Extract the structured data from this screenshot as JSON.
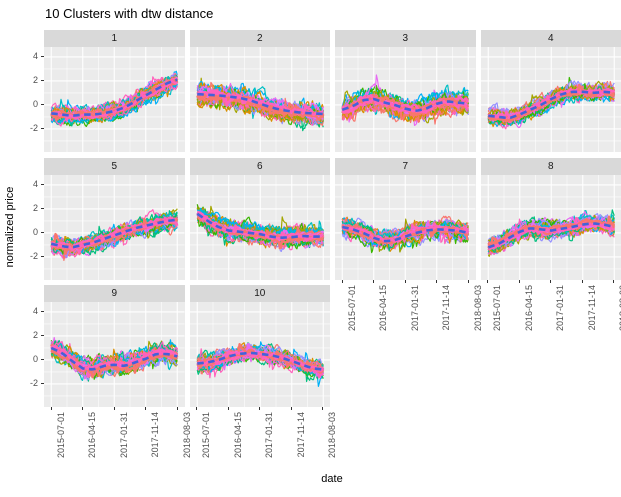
{
  "title": "10 Clusters with dtw distance",
  "axes": {
    "xlabel": "date",
    "ylabel": "normalized price"
  },
  "chart_data": {
    "type": "line",
    "description": "Faceted spaghetti plot of clustered time series (4x3 facet wrap, 10 facets). Each facet shows many normalized price series colored by a 10-hue palette plus a thick dashed blue centroid line.",
    "facet_labels": [
      "1",
      "2",
      "3",
      "4",
      "5",
      "6",
      "7",
      "8",
      "9",
      "10"
    ],
    "x_tick_labels": [
      "2015-07-01",
      "2016-04-15",
      "2017-01-31",
      "2017-11-14",
      "2018-08-03"
    ],
    "y_tick_values": [
      4,
      2,
      0,
      -2
    ],
    "y_domain": [
      -3.92,
      4.83
    ],
    "x_range": [
      "2015-07-01",
      "2018-08-03"
    ],
    "grid": "major and minor white gridlines on gray panel",
    "legend": "none",
    "facets": [
      {
        "label": "1",
        "centroid_trend": [
          -0.7,
          -0.8,
          -0.9,
          -0.8,
          -0.8,
          -0.7,
          -0.5,
          -0.2,
          0.3,
          0.8,
          1.3,
          1.8,
          2.1
        ],
        "spread": 0.85
      },
      {
        "label": "2",
        "centroid_trend": [
          0.9,
          0.85,
          0.8,
          0.7,
          0.6,
          0.4,
          0.1,
          -0.2,
          -0.4,
          -0.55,
          -0.65,
          -0.7,
          -0.75
        ],
        "spread": 1.15
      },
      {
        "label": "3",
        "centroid_trend": [
          -0.4,
          -0.1,
          0.4,
          0.5,
          0.2,
          0.0,
          -0.3,
          -0.5,
          -0.3,
          0.1,
          0.3,
          0.2,
          0.1
        ],
        "spread": 1.2
      },
      {
        "label": "4",
        "centroid_trend": [
          -0.9,
          -1.0,
          -1.1,
          -0.8,
          -0.4,
          0.0,
          0.5,
          0.9,
          1.1,
          1.1,
          1.0,
          1.1,
          1.0
        ],
        "spread": 0.9
      },
      {
        "label": "5",
        "centroid_trend": [
          -0.9,
          -1.1,
          -1.2,
          -1.0,
          -0.8,
          -0.5,
          -0.2,
          0.1,
          0.4,
          0.6,
          0.8,
          1.0,
          1.1
        ],
        "spread": 0.9
      },
      {
        "label": "6",
        "centroid_trend": [
          1.6,
          1.0,
          0.5,
          0.2,
          0.1,
          0.0,
          -0.1,
          -0.3,
          -0.4,
          -0.35,
          -0.25,
          -0.3,
          -0.3
        ],
        "spread": 1.0
      },
      {
        "label": "7",
        "centroid_trend": [
          0.5,
          0.3,
          0.0,
          -0.4,
          -0.7,
          -0.6,
          -0.3,
          0.0,
          0.2,
          0.3,
          0.25,
          0.2,
          0.0
        ],
        "spread": 1.0
      },
      {
        "label": "8",
        "centroid_trend": [
          -1.2,
          -0.9,
          -0.4,
          0.1,
          0.4,
          0.3,
          0.2,
          0.35,
          0.5,
          0.7,
          0.8,
          0.7,
          0.5
        ],
        "spread": 0.9
      },
      {
        "label": "9",
        "centroid_trend": [
          1.0,
          0.6,
          -0.1,
          -0.7,
          -0.8,
          -0.5,
          -0.4,
          -0.5,
          -0.2,
          0.1,
          0.5,
          0.5,
          0.3
        ],
        "spread": 1.0
      },
      {
        "label": "10",
        "centroid_trend": [
          -0.3,
          -0.2,
          0.0,
          0.3,
          0.5,
          0.6,
          0.5,
          0.4,
          0.2,
          -0.1,
          -0.4,
          -0.7,
          -0.8
        ],
        "spread": 0.9
      }
    ],
    "series_palette": [
      "#F8766D",
      "#D89000",
      "#A3A500",
      "#39B600",
      "#00BF7D",
      "#00BFC4",
      "#00B0F6",
      "#9590FF",
      "#E76BF3",
      "#FF62BC"
    ],
    "core_band_colors": [
      "#F8766D",
      "#FF62BC",
      "#F8766D",
      "#E76BF3",
      "#F8766D",
      "#FF62BC",
      "#F8766D",
      "#F8766D",
      "#FF62BC"
    ],
    "centroid_style": {
      "color": "#4262D9",
      "dashed": true
    },
    "members_rendered_per_cluster": 41,
    "colors": {
      "panel_bg": "#ebebeb",
      "strip_bg": "#d9d9d9",
      "gridline": "#ffffff",
      "axis_text": "#4d4d4d",
      "strip_text": "#1a1a1a",
      "tick_mark": "#333333"
    }
  }
}
